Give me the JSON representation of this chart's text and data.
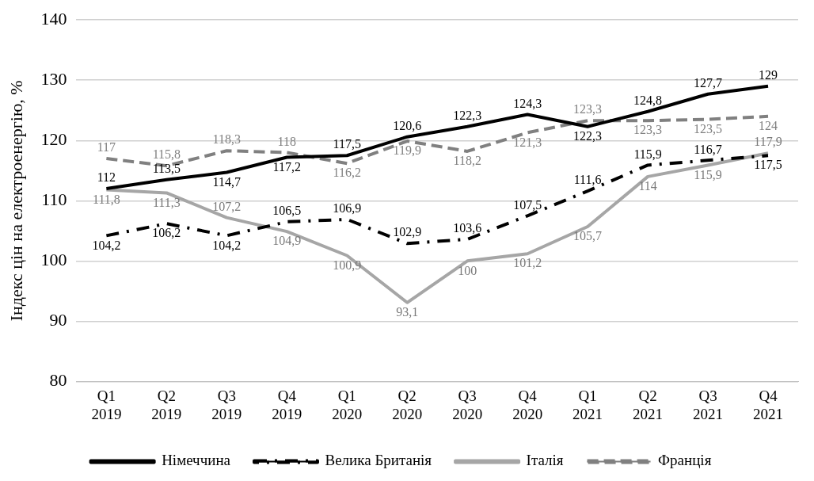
{
  "chart_data": {
    "type": "line",
    "ylabel": "Індекс цін на електроенергію, %",
    "categories": [
      "Q1 2019",
      "Q2 2019",
      "Q3 2019",
      "Q4 2019",
      "Q1 2020",
      "Q2 2020",
      "Q3 2020",
      "Q4 2020",
      "Q1 2021",
      "Q2 2021",
      "Q3 2021",
      "Q4 2021"
    ],
    "series": [
      {
        "name": "Німеччина",
        "color": "#000000",
        "line_style": "solid",
        "values": [
          112,
          113.5,
          114.7,
          117.2,
          117.5,
          120.6,
          122.3,
          124.3,
          122.3,
          124.8,
          127.7,
          129
        ],
        "value_labels": [
          "112",
          "113,5",
          "114,7",
          "117,2",
          "117,5",
          "120,6",
          "122,3",
          "124,3",
          "122,3",
          "124,8",
          "127,7",
          "129"
        ]
      },
      {
        "name": "Велика Британія",
        "color": "#000000",
        "line_style": "dashdot",
        "values": [
          104.2,
          106.2,
          104.2,
          106.5,
          106.9,
          102.9,
          103.6,
          107.5,
          111.6,
          115.9,
          116.7,
          117.5
        ],
        "value_labels": [
          "104,2",
          "106,2",
          "104,2",
          "106,5",
          "106,9",
          "102,9",
          "103,6",
          "107,5",
          "111,6",
          "115,9",
          "116,7",
          "117,5"
        ]
      },
      {
        "name": "Італія",
        "color": "#a6a6a6",
        "line_style": "solid",
        "values": [
          111.8,
          111.3,
          107.2,
          104.9,
          100.9,
          93.1,
          100,
          101.2,
          105.7,
          114,
          115.9,
          117.9
        ],
        "value_labels": [
          "111,8",
          "111,3",
          "107,2",
          "104,9",
          "100,9",
          "93,1",
          "100",
          "101,2",
          "105,7",
          "114",
          "115,9",
          "117,9"
        ]
      },
      {
        "name": "Франція",
        "color": "#808080",
        "line_style": "dashed",
        "values": [
          117,
          115.8,
          118.3,
          118,
          116.2,
          119.9,
          118.2,
          121.3,
          123.3,
          123.3,
          123.5,
          124
        ],
        "value_labels": [
          "117",
          "115,8",
          "118,3",
          "118",
          "116,2",
          "119,9",
          "118,2",
          "121,3",
          "123,3",
          "123,3",
          "123,5",
          "124"
        ]
      }
    ],
    "ylim": [
      80,
      140
    ],
    "yticks": [
      80,
      90,
      100,
      110,
      120,
      130,
      140
    ],
    "grid": "y",
    "legend": "bottom",
    "marker": "none"
  }
}
